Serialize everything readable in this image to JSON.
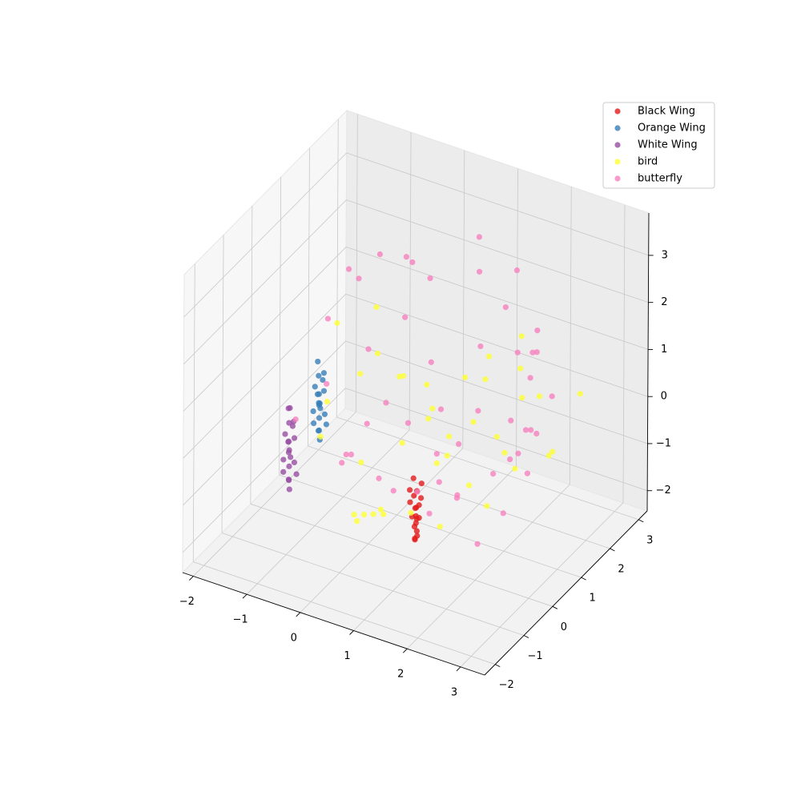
{
  "chart_data": {
    "type": "scatter3d",
    "xlim": [
      -2.2,
      3.45
    ],
    "ylim": [
      -2.37,
      3.3
    ],
    "zlim": [
      -2.43,
      3.9
    ],
    "xticks": [
      {
        "value": -2,
        "label": "−2"
      },
      {
        "value": -1,
        "label": "−1"
      },
      0,
      1,
      2,
      3
    ],
    "yticks": [
      {
        "value": -2,
        "label": "−2"
      },
      {
        "value": -1,
        "label": "−1"
      },
      0,
      1,
      2,
      3
    ],
    "zticks": [
      {
        "value": -2,
        "label": "−2"
      },
      {
        "value": -1,
        "label": "−1"
      },
      0,
      1,
      2,
      3
    ],
    "grid": true,
    "legend": "upper right",
    "series": [
      {
        "name": "Black Wing",
        "color": "#e41a1c",
        "x": [
          1.02,
          1.1,
          0.98,
          1.12,
          1.05,
          0.95,
          1.08,
          1.15,
          1.0,
          1.04,
          1.09,
          0.97,
          1.11,
          1.03,
          1.06,
          0.99,
          1.13,
          1.01,
          1.07,
          1.05
        ],
        "y": [
          -0.28,
          -0.35,
          -0.22,
          -0.4,
          -0.3,
          -0.25,
          -0.33,
          -0.38,
          -0.2,
          -0.31,
          -0.27,
          -0.36,
          -0.24,
          -0.34,
          -0.29,
          -0.41,
          -0.26,
          -0.32,
          -0.37,
          -0.3
        ],
        "z": [
          -1.75,
          -1.62,
          -1.55,
          -1.48,
          -1.4,
          -1.33,
          -1.28,
          -1.2,
          -1.15,
          -1.08,
          -1.02,
          -0.95,
          -0.88,
          -0.8,
          -0.72,
          -0.65,
          -0.55,
          -0.45,
          -1.7,
          -1.25
        ]
      },
      {
        "name": "Orange Wing",
        "color": "#377eb8",
        "x": [
          -1.42,
          -1.5,
          -1.45,
          -1.38,
          -1.52,
          -1.47,
          -1.4,
          -1.55,
          -1.44,
          -1.49,
          -1.41,
          -1.53,
          -1.46,
          -1.39,
          -1.51,
          -1.43,
          -1.48,
          -1.36,
          -1.54,
          -1.45
        ],
        "y": [
          0.95,
          1.05,
          0.98,
          1.1,
          0.92,
          1.02,
          1.08,
          0.96,
          1.0,
          1.04,
          0.9,
          1.07,
          0.99,
          1.03,
          0.94,
          1.06,
          1.01,
          0.97,
          1.09,
          1.0
        ],
        "z": [
          -1.35,
          -1.25,
          -1.18,
          -1.1,
          -1.02,
          -0.95,
          -0.88,
          -0.8,
          -0.72,
          -0.65,
          -0.58,
          -0.5,
          -0.42,
          -0.35,
          -0.25,
          -0.15,
          -0.05,
          0.08,
          0.18,
          -0.62
        ]
      },
      {
        "name": "White Wing",
        "color": "#984ea3",
        "x": [
          -1.45,
          -1.52,
          -1.48,
          -1.4,
          -1.55,
          -1.5,
          -1.43,
          -1.57,
          -1.46,
          -1.51,
          -1.44,
          -1.54,
          -1.49,
          -1.41,
          -1.53,
          -1.47,
          -1.5,
          -1.39,
          -1.56,
          -1.48
        ],
        "y": [
          -0.05,
          0.06,
          -0.02,
          0.1,
          -0.08,
          0.03,
          0.08,
          -0.04,
          0.0,
          0.05,
          -0.1,
          0.07,
          -0.01,
          0.04,
          -0.06,
          0.09,
          0.02,
          -0.03,
          0.11,
          0.01
        ],
        "z": [
          -1.8,
          -1.7,
          -1.62,
          -1.55,
          -1.45,
          -1.38,
          -1.3,
          -1.22,
          -1.15,
          -1.05,
          -0.98,
          -0.9,
          -0.82,
          -0.75,
          -0.65,
          -0.55,
          -0.45,
          -0.35,
          -0.22,
          -0.12
        ]
      },
      {
        "name": "bird",
        "color": "#ffff33",
        "x": [
          -1.2,
          -0.8,
          -0.5,
          0.0,
          0.3,
          0.7,
          1.0,
          1.4,
          1.8,
          2.2,
          0.0,
          -0.3,
          0.5,
          1.2,
          1.9,
          2.4,
          0.6,
          0.2,
          0.9,
          1.6,
          -1.4,
          -0.9,
          0.1,
          0.8,
          1.5,
          2.0,
          -0.2,
          0.6,
          1.1,
          2.3,
          -1.1,
          0.4,
          0.2,
          1.3,
          1.7,
          2.1,
          -0.7,
          0.0,
          0.9,
          1.9
        ],
        "y": [
          2.5,
          1.8,
          2.0,
          1.2,
          2.8,
          1.5,
          2.2,
          0.9,
          2.6,
          1.0,
          -0.5,
          0.3,
          -0.5,
          0.5,
          1.8,
          2.9,
          -0.6,
          0.8,
          -0.2,
          2.3,
          1.5,
          0.0,
          1.9,
          2.7,
          -0.3,
          0.4,
          2.4,
          1.1,
          1.6,
          2.0,
          0.6,
          -0.9,
          -0.2,
          2.9,
          1.3,
          2.5,
          1.0,
          -0.4,
          0.7,
          1.2
        ],
        "z": [
          0.6,
          0.2,
          -0.3,
          0.4,
          -0.5,
          -0.8,
          0.1,
          -1.2,
          -0.2,
          -0.6,
          -1.5,
          -1.0,
          -1.2,
          -0.4,
          0.3,
          -0.1,
          -1.2,
          -0.7,
          -1.3,
          0.5,
          0.8,
          -0.5,
          -0.9,
          0.2,
          -1.3,
          -1.1,
          -0.6,
          0.0,
          -0.4,
          -0.9,
          -0.2,
          -1.1,
          -1.6,
          0.7,
          -0.3,
          -1.2,
          0.3,
          -1.7,
          -0.8,
          -0.5
        ]
      },
      {
        "name": "butterfly",
        "color": "#f781bf",
        "x": [
          -1.3,
          -0.8,
          -0.2,
          0.4,
          1.0,
          1.6,
          2.2,
          1.8,
          -1.0,
          -0.4,
          0.2,
          0.8,
          1.4,
          2.0,
          2.6,
          -1.2,
          -0.6,
          0.0,
          0.6,
          1.2,
          1.8,
          2.4,
          2.6,
          -0.9,
          -0.3,
          0.3,
          0.9,
          1.5,
          2.1,
          2.7,
          -1.1,
          -0.5,
          0.1,
          0.7,
          1.3,
          1.9,
          2.0,
          -0.7,
          0.5,
          1.1,
          1.7,
          2.3,
          -1.4,
          -0.1,
          1.0,
          2.2,
          0.2,
          1.6,
          2.2,
          1.0
        ],
        "y": [
          2.8,
          3.0,
          2.5,
          3.1,
          2.9,
          2.2,
          1.6,
          2.5,
          1.5,
          2.0,
          1.8,
          2.4,
          1.2,
          1.9,
          1.0,
          0.8,
          1.1,
          0.6,
          1.4,
          0.9,
          1.6,
          1.0,
          0.8,
          0.2,
          0.5,
          -0.2,
          0.7,
          0.3,
          1.3,
          0.5,
          -0.5,
          0.0,
          -0.8,
          0.4,
          -0.3,
          0.8,
          1.2,
          2.6,
          2.9,
          3.1,
          2.7,
          2.1,
          1.9,
          -0.6,
          -1.0,
          -0.3,
          1.0,
          0.1,
          0.6,
          0.6
        ],
        "z": [
          1.5,
          1.4,
          1.6,
          1.6,
          1.2,
          0.9,
          1.5,
          0.8,
          1.9,
          1.0,
          0.4,
          0.6,
          0.2,
          0.7,
          0.3,
          1.4,
          0.8,
          0.2,
          -0.2,
          -0.4,
          -0.1,
          0.3,
          0.5,
          0.5,
          -0.3,
          -0.8,
          -0.6,
          -1.0,
          -0.5,
          -0.2,
          0.1,
          -0.9,
          0.0,
          -1.3,
          -1.1,
          -0.7,
          -0.6,
          1.8,
          2.5,
          1.9,
          1.1,
          0.3,
          1.7,
          -0.2,
          -0.3,
          -1.4,
          -0.4,
          -0.9,
          -1.3,
          -1.1
        ]
      }
    ]
  }
}
